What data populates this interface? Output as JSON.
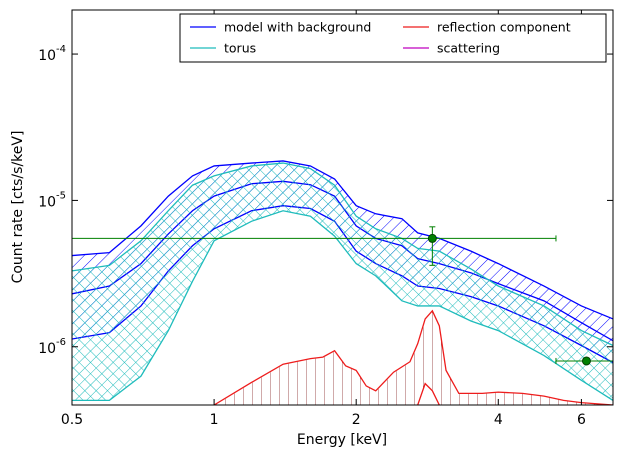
{
  "chart_data": {
    "type": "line",
    "xlabel": "Energy [keV]",
    "ylabel": "Count rate [cts/s/keV]",
    "xscale": "log",
    "yscale": "log",
    "xlim": [
      0.5,
      7.0
    ],
    "ylim": [
      4e-07,
      0.0002
    ],
    "xticks": [
      0.5,
      1,
      2,
      4,
      6
    ],
    "yticks": [
      {
        "value": 1e-06,
        "label": "10^-6"
      },
      {
        "value": 1e-05,
        "label": "10^-5"
      },
      {
        "value": 0.0001,
        "label": "10^-4"
      }
    ],
    "legend": {
      "loc": "upper right",
      "ncol": 2
    },
    "series": [
      {
        "name": "model with background",
        "color": "#0000ff",
        "fill": "hatch",
        "x": [
          0.5,
          0.6,
          0.7,
          0.8,
          0.9,
          1.0,
          1.2,
          1.4,
          1.6,
          1.8,
          2.0,
          2.2,
          2.5,
          2.7,
          3.0,
          3.5,
          4.0,
          5.0,
          6.0,
          7.0
        ],
        "upper": [
          4.2e-06,
          4.4e-06,
          6.7e-06,
          1.07e-05,
          1.47e-05,
          1.72e-05,
          1.8e-05,
          1.86e-05,
          1.72e-05,
          1.4e-05,
          9.2e-06,
          8.1e-06,
          7.5e-06,
          6e-06,
          5.5e-06,
          4.5e-06,
          3.7e-06,
          2.6e-06,
          1.9e-06,
          1.55e-06
        ],
        "values": [
          2.3e-06,
          2.6e-06,
          3.7e-06,
          5.9e-06,
          8.5e-06,
          1.07e-05,
          1.3e-05,
          1.35e-05,
          1.28e-05,
          1.07e-05,
          6.7e-06,
          5.5e-06,
          4.9e-06,
          4e-06,
          3.7e-06,
          3.2e-06,
          2.7e-06,
          2.06e-06,
          1.46e-06,
          1.1e-06
        ],
        "lower": [
          1.13e-06,
          1.25e-06,
          1.9e-06,
          3.3e-06,
          4.9e-06,
          6.4e-06,
          8.5e-06,
          9.2e-06,
          8.8e-06,
          7.2e-06,
          4.5e-06,
          3.7e-06,
          3.05e-06,
          2.6e-06,
          2.5e-06,
          2.2e-06,
          1.9e-06,
          1.39e-06,
          1.02e-06,
          7.8e-07
        ]
      },
      {
        "name": "torus",
        "color": "#1fbcbc",
        "fill": "cross",
        "x": [
          0.5,
          0.6,
          0.7,
          0.8,
          0.9,
          1.0,
          1.2,
          1.4,
          1.6,
          1.8,
          2.0,
          2.2,
          2.5,
          2.7,
          3.0,
          3.5,
          4.0,
          5.0,
          6.0,
          7.0
        ],
        "upper": [
          3.3e-06,
          3.6e-06,
          5.3e-06,
          8.5e-06,
          1.27e-05,
          1.47e-05,
          1.72e-05,
          1.8e-05,
          1.65e-05,
          1.27e-05,
          7.8e-06,
          6.4e-06,
          5.5e-06,
          4.7e-06,
          4.5e-06,
          3.4e-06,
          2.6e-06,
          1.9e-06,
          1.29e-06,
          1.02e-06
        ],
        "lower": [
          4.3e-07,
          4.3e-07,
          6.3e-07,
          1.29e-06,
          2.8e-06,
          5.3e-06,
          7.2e-06,
          8.5e-06,
          7.8e-06,
          5.7e-06,
          3.7e-06,
          3.05e-06,
          2.06e-06,
          1.9e-06,
          1.9e-06,
          1.5e-06,
          1.29e-06,
          8.7e-07,
          5.9e-07,
          4.3e-07
        ]
      },
      {
        "name": "reflection component",
        "color": "#ee1c1c",
        "fill": "vline",
        "x": [
          1.0,
          1.2,
          1.4,
          1.6,
          1.7,
          1.8,
          1.9,
          2.0,
          2.1,
          2.2,
          2.4,
          2.6,
          2.7,
          2.8,
          2.9,
          3.0,
          3.1,
          3.3,
          3.7,
          4.0,
          4.5,
          5.0,
          5.5,
          6.0,
          7.0
        ],
        "upper": [
          4e-07,
          5.7e-07,
          7.6e-07,
          8.3e-07,
          8.5e-07,
          9.4e-07,
          7.4e-07,
          6.9e-07,
          5.4e-07,
          5e-07,
          6.7e-07,
          7.9e-07,
          1.05e-06,
          1.55e-06,
          1.76e-06,
          1.39e-06,
          6.9e-07,
          4.8e-07,
          4.8e-07,
          4.9e-07,
          4.8e-07,
          4.6e-07,
          4.3e-07,
          4.15e-07,
          4e-07
        ],
        "lower": [
          null,
          null,
          null,
          null,
          null,
          null,
          null,
          null,
          null,
          null,
          null,
          null,
          4e-07,
          5.6e-07,
          5e-07,
          4e-07,
          null,
          null,
          null,
          null,
          null,
          null,
          null,
          null,
          null
        ]
      },
      {
        "name": "scattering",
        "color": "#bf00bf"
      }
    ],
    "points": {
      "color": "#008000",
      "x": [
        2.9,
        6.15
      ],
      "values": [
        5.5e-06,
        8e-07
      ],
      "xmin": [
        0.5,
        5.3
      ],
      "xmax": [
        5.3,
        7.0
      ],
      "ymin": [
        3.6e-06,
        7.8e-07
      ],
      "ymax": [
        6.6e-06,
        8.2e-07
      ]
    }
  }
}
